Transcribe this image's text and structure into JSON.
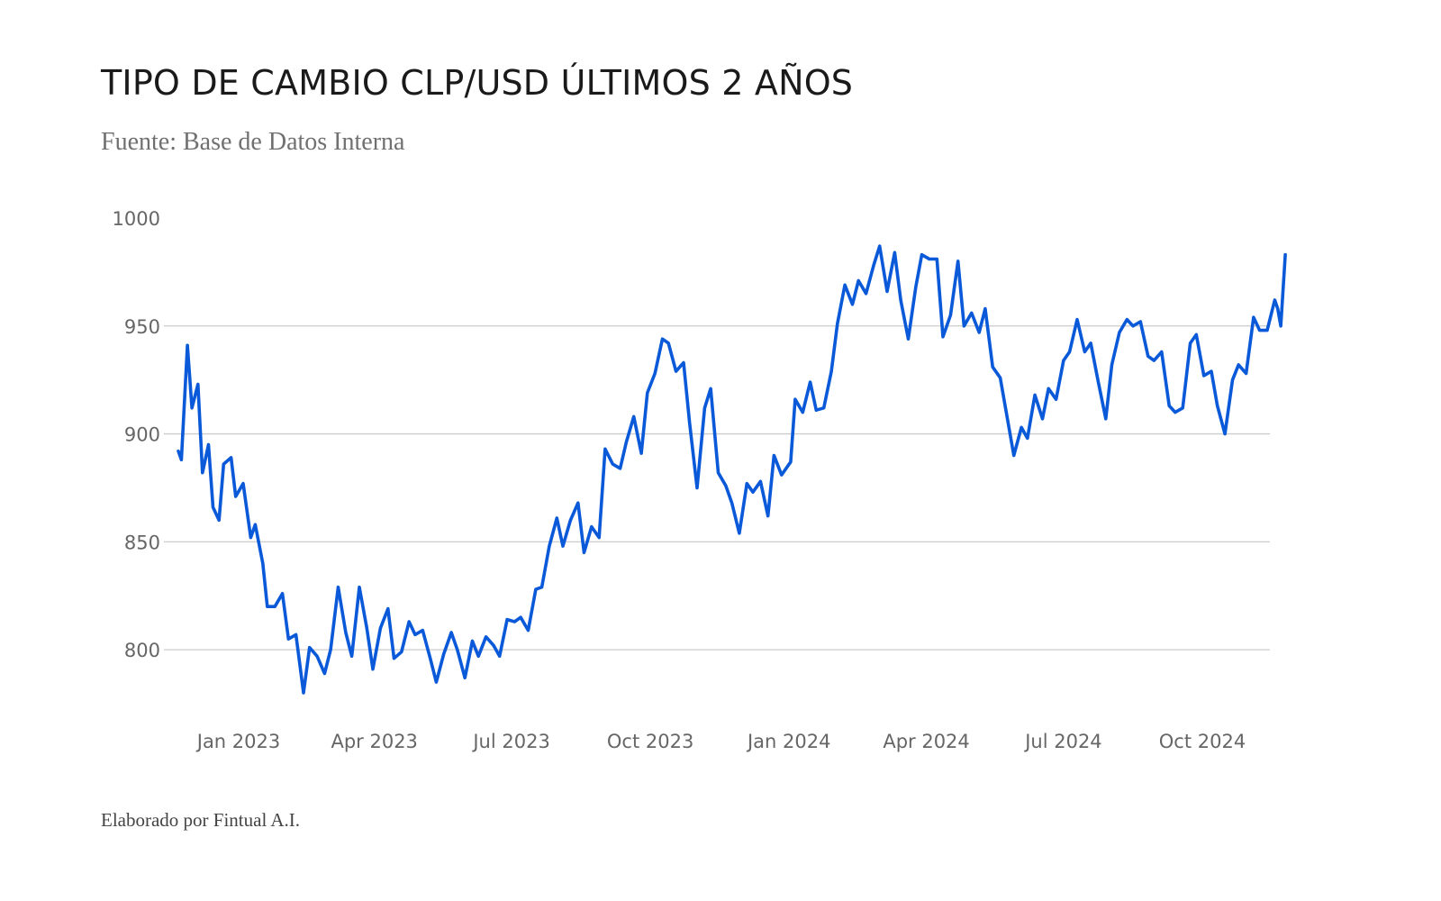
{
  "header": {
    "title": "TIPO DE CAMBIO CLP/USD ÚLTIMOS 2 AÑOS",
    "subtitle": "Fuente: Base de Datos Interna"
  },
  "footer": {
    "credit": "Elaborado por Fintual A.I."
  },
  "colors": {
    "line": "#0a59d9",
    "grid": "#cccccc",
    "tick_text": "#666666"
  },
  "chart_data": {
    "type": "line",
    "title": "TIPO DE CAMBIO CLP/USD ÚLTIMOS 2 AÑOS",
    "xlabel": "",
    "ylabel": "",
    "ylim": [
      770,
      1000
    ],
    "xlim": [
      "2022-11-22",
      "2024-11-25"
    ],
    "grid": "horizontal",
    "legend": "none",
    "y_ticks": [
      {
        "value": 800,
        "label": "800"
      },
      {
        "value": 850,
        "label": "850"
      },
      {
        "value": 900,
        "label": "900"
      },
      {
        "value": 950,
        "label": "950"
      },
      {
        "value": 1000,
        "label": "1000"
      }
    ],
    "x_ticks": [
      {
        "date": "2023-01-01",
        "label": "Jan 2023"
      },
      {
        "date": "2023-04-01",
        "label": "Apr 2023"
      },
      {
        "date": "2023-07-01",
        "label": "Jul 2023"
      },
      {
        "date": "2023-10-01",
        "label": "Oct 2023"
      },
      {
        "date": "2024-01-01",
        "label": "Jan 2024"
      },
      {
        "date": "2024-04-01",
        "label": "Apr 2024"
      },
      {
        "date": "2024-07-01",
        "label": "Jul 2024"
      },
      {
        "date": "2024-10-01",
        "label": "Oct 2024"
      }
    ],
    "series": [
      {
        "x": [
          "2022-11-22",
          "2022-11-24",
          "2022-11-28",
          "2022-12-01",
          "2022-12-05",
          "2022-12-08",
          "2022-12-12",
          "2022-12-15",
          "2022-12-19",
          "2022-12-22",
          "2022-12-27",
          "2022-12-30",
          "2023-01-04",
          "2023-01-09",
          "2023-01-12",
          "2023-01-17",
          "2023-01-20",
          "2023-01-25",
          "2023-01-30",
          "2023-02-03",
          "2023-02-08",
          "2023-02-13",
          "2023-02-17",
          "2023-02-22",
          "2023-02-27",
          "2023-03-03",
          "2023-03-08",
          "2023-03-13",
          "2023-03-17",
          "2023-03-22",
          "2023-03-27",
          "2023-03-31",
          "2023-04-05",
          "2023-04-10",
          "2023-04-14",
          "2023-04-19",
          "2023-04-24",
          "2023-04-28",
          "2023-05-03",
          "2023-05-08",
          "2023-05-12",
          "2023-05-17",
          "2023-05-22",
          "2023-05-26",
          "2023-05-31",
          "2023-06-05",
          "2023-06-09",
          "2023-06-14",
          "2023-06-19",
          "2023-06-23",
          "2023-06-28",
          "2023-07-03",
          "2023-07-07",
          "2023-07-12",
          "2023-07-17",
          "2023-07-21",
          "2023-07-26",
          "2023-07-31",
          "2023-08-04",
          "2023-08-09",
          "2023-08-14",
          "2023-08-18",
          "2023-08-23",
          "2023-08-28",
          "2023-09-01",
          "2023-09-06",
          "2023-09-11",
          "2023-09-15",
          "2023-09-20",
          "2023-09-25",
          "2023-09-29",
          "2023-10-04",
          "2023-10-09",
          "2023-10-13",
          "2023-10-18",
          "2023-10-23",
          "2023-10-27",
          "2023-11-01",
          "2023-11-06",
          "2023-11-10",
          "2023-11-15",
          "2023-11-20",
          "2023-11-24",
          "2023-11-29",
          "2023-12-04",
          "2023-12-08",
          "2023-12-13",
          "2023-12-18",
          "2023-12-22",
          "2023-12-27",
          "2024-01-02",
          "2024-01-05",
          "2024-01-10",
          "2024-01-15",
          "2024-01-19",
          "2024-01-24",
          "2024-01-29",
          "2024-02-02",
          "2024-02-07",
          "2024-02-12",
          "2024-02-16",
          "2024-02-21",
          "2024-02-26",
          "2024-03-01",
          "2024-03-06",
          "2024-03-11",
          "2024-03-15",
          "2024-03-20",
          "2024-03-25",
          "2024-03-29",
          "2024-04-03",
          "2024-04-08",
          "2024-04-12",
          "2024-04-17",
          "2024-04-22",
          "2024-04-26",
          "2024-05-01",
          "2024-05-06",
          "2024-05-10",
          "2024-05-15",
          "2024-05-20",
          "2024-05-24",
          "2024-05-29",
          "2024-06-03",
          "2024-06-07",
          "2024-06-12",
          "2024-06-17",
          "2024-06-21",
          "2024-06-26",
          "2024-07-01",
          "2024-07-05",
          "2024-07-10",
          "2024-07-15",
          "2024-07-19",
          "2024-07-24",
          "2024-07-29",
          "2024-08-02",
          "2024-08-07",
          "2024-08-12",
          "2024-08-16",
          "2024-08-21",
          "2024-08-26",
          "2024-08-30",
          "2024-09-04",
          "2024-09-09",
          "2024-09-13",
          "2024-09-18",
          "2024-09-23",
          "2024-09-27",
          "2024-10-02",
          "2024-10-07",
          "2024-10-11",
          "2024-10-16",
          "2024-10-21",
          "2024-10-25",
          "2024-10-30",
          "2024-11-04",
          "2024-11-08",
          "2024-11-13",
          "2024-11-18",
          "2024-11-20",
          "2024-11-22",
          "2024-11-25"
        ],
        "values": [
          892,
          888,
          941,
          912,
          923,
          882,
          895,
          866,
          860,
          886,
          889,
          871,
          877,
          852,
          858,
          840,
          820,
          820,
          826,
          805,
          807,
          780,
          801,
          797,
          789,
          800,
          829,
          808,
          797,
          829,
          810,
          791,
          810,
          819,
          796,
          799,
          813,
          807,
          809,
          796,
          785,
          798,
          808,
          800,
          787,
          804,
          797,
          806,
          802,
          797,
          814,
          813,
          815,
          809,
          828,
          829,
          848,
          861,
          848,
          860,
          868,
          845,
          857,
          852,
          893,
          886,
          884,
          896,
          908,
          891,
          919,
          928,
          944,
          942,
          929,
          933,
          905,
          875,
          912,
          921,
          882,
          876,
          868,
          854,
          877,
          873,
          878,
          862,
          890,
          881,
          887,
          916,
          910,
          924,
          911,
          912,
          929,
          951,
          969,
          960,
          971,
          965,
          978,
          987,
          966,
          984,
          962,
          944,
          968,
          983,
          981,
          981,
          945,
          955,
          980,
          950,
          956,
          947,
          958,
          931,
          926,
          910,
          890,
          903,
          898,
          918,
          907,
          921,
          916,
          934,
          938,
          953,
          938,
          942,
          924,
          907,
          932,
          947,
          953,
          950,
          952,
          936,
          934,
          938,
          913,
          910,
          912,
          942,
          946,
          927,
          929,
          913,
          900,
          925,
          932,
          928,
          954,
          948,
          948,
          962,
          958,
          950,
          983
        ]
      }
    ]
  }
}
